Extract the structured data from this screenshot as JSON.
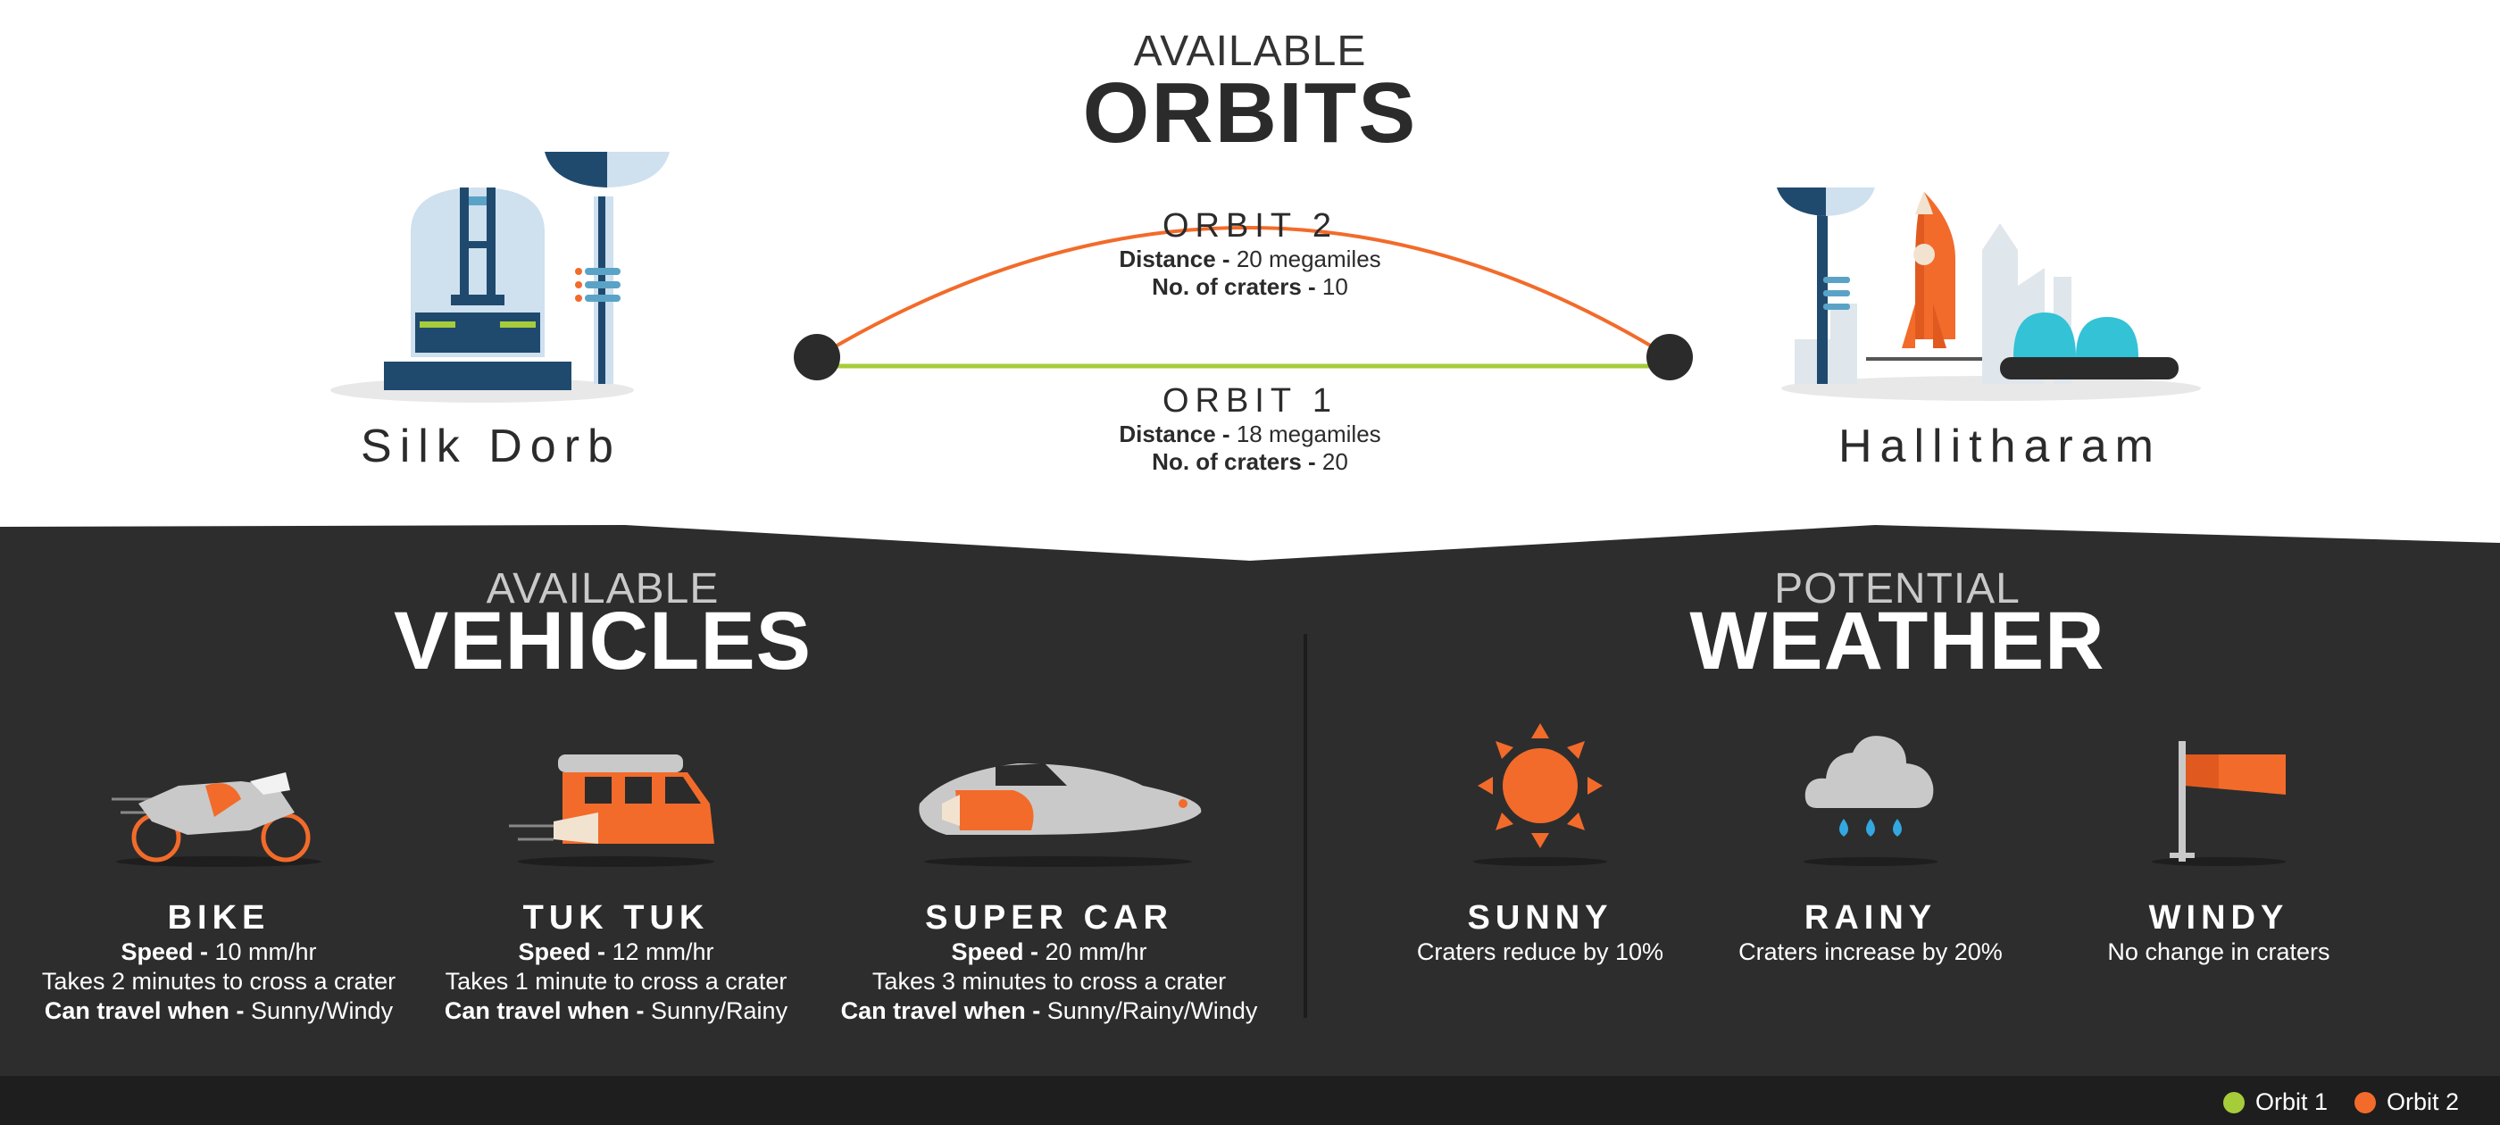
{
  "orbits_header": {
    "subtitle": "AVAILABLE",
    "title": "ORBITS"
  },
  "orbits": [
    {
      "name": "ORBIT 2",
      "distance_label": "Distance -",
      "distance": "20 megamiles",
      "craters_label": "No. of craters -",
      "craters": "10",
      "color": "#f26b2a"
    },
    {
      "name": "ORBIT 1",
      "distance_label": "Distance -",
      "distance": "18 megamiles",
      "craters_label": "No. of craters -",
      "craters": "20",
      "color": "#a6cc3a"
    }
  ],
  "planets": {
    "left": "Silk Dorb",
    "right": "Hallitharam"
  },
  "vehicles_header": {
    "subtitle": "AVAILABLE",
    "title": "VEHICLES"
  },
  "vehicles": [
    {
      "name": "BIKE",
      "speed_label": "Speed -",
      "speed": "10 mm/hr",
      "crater_text": "Takes 2 minutes to cross a crater",
      "travel_label": "Can travel when -",
      "travel": "Sunny/Windy",
      "icon": "bike-icon"
    },
    {
      "name": "TUK TUK",
      "speed_label": "Speed -",
      "speed": "12 mm/hr",
      "crater_text": "Takes 1 minute to cross a crater",
      "travel_label": "Can travel when -",
      "travel": "Sunny/Rainy",
      "icon": "tuktuk-icon"
    },
    {
      "name": "SUPER CAR",
      "speed_label": "Speed -",
      "speed": "20 mm/hr",
      "crater_text": "Takes 3 minutes to cross a crater",
      "travel_label": "Can travel when -",
      "travel": "Sunny/Rainy/Windy",
      "icon": "supercar-icon"
    }
  ],
  "weather_header": {
    "subtitle": "POTENTIAL",
    "title": "WEATHER"
  },
  "weather": [
    {
      "name": "SUNNY",
      "effect": "Craters reduce by 10%",
      "icon": "sun-icon"
    },
    {
      "name": "RAINY",
      "effect": "Craters increase by 20%",
      "icon": "rain-cloud-icon"
    },
    {
      "name": "WINDY",
      "effect": "No change in craters",
      "icon": "windsock-icon"
    }
  ],
  "legend": [
    {
      "label": "Orbit 1",
      "color": "#a6cc3a"
    },
    {
      "label": "Orbit 2",
      "color": "#f26b2a"
    }
  ],
  "colors": {
    "dark_panel": "#2d2d2d",
    "footer": "#1e1e1e",
    "accent_orange": "#f26b2a",
    "accent_green": "#a6cc3a"
  }
}
